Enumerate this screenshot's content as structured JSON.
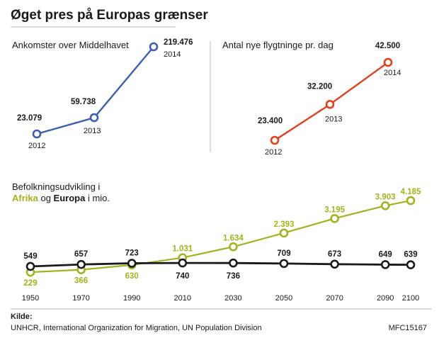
{
  "title": "Øget pres på Europas grænser",
  "colors": {
    "blue": "#3b5fb3",
    "red": "#e2401c",
    "green": "#a4b21c",
    "black": "#1a1a1a"
  },
  "chart_data": [
    {
      "type": "line",
      "title": "Ankomster over Middelhavet",
      "x": [
        "2012",
        "2013",
        "2014"
      ],
      "series": [
        {
          "values": [
            23079,
            59738,
            219476
          ],
          "labels": [
            "23.079",
            "59.738",
            "219.476"
          ],
          "color": "#3b5fb3"
        }
      ]
    },
    {
      "type": "line",
      "title": "Antal nye flygtninge pr. dag",
      "x": [
        "2012",
        "2013",
        "2014"
      ],
      "series": [
        {
          "values": [
            23400,
            32200,
            42500
          ],
          "labels": [
            "23.400",
            "32.200",
            "42.500"
          ],
          "color": "#e2401c"
        }
      ]
    },
    {
      "type": "line",
      "title_line1": "Befolkningsudvikling i",
      "title_afrika": "Afrika",
      "title_og": " og ",
      "title_europa": "Europa",
      "title_rest": " i mio.",
      "x": [
        "1950",
        "1970",
        "1990",
        "2010",
        "2030",
        "2050",
        "2070",
        "2090",
        "2100"
      ],
      "series": [
        {
          "name": "Afrika",
          "color": "#a4b21c",
          "values": [
            229,
            366,
            630,
            1031,
            1634,
            2393,
            3195,
            3903,
            4185
          ],
          "labels": [
            "229",
            "366",
            "630",
            "1.031",
            "1.634",
            "2.393",
            "3.195",
            "3.903",
            "4.185"
          ]
        },
        {
          "name": "Europa",
          "color": "#1a1a1a",
          "values": [
            549,
            657,
            723,
            740,
            736,
            709,
            673,
            649,
            639
          ],
          "labels": [
            "549",
            "657",
            "723",
            "740",
            "736",
            "709",
            "673",
            "649",
            "639"
          ]
        }
      ]
    }
  ],
  "footer": {
    "source_label": "Kilde:",
    "source_text": "UNHCR, International Organization for Migration, UN Population Division",
    "code": "MFC15167"
  }
}
